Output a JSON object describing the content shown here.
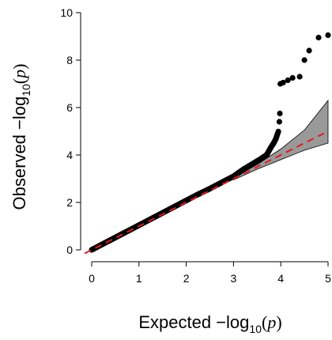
{
  "chart_data": {
    "type": "scatter",
    "title": "",
    "xlabel": {
      "prefix": "Expected  −log",
      "subscript": "10",
      "open_paren": "(",
      "variable": "p",
      "close_paren": ")"
    },
    "ylabel": {
      "prefix": "Observed  −log",
      "subscript": "10",
      "open_paren": "(",
      "variable": "p",
      "close_paren": ")"
    },
    "xlim": [
      0,
      5
    ],
    "ylim": [
      0,
      10
    ],
    "x_ticks": [
      0,
      1,
      2,
      3,
      4,
      5
    ],
    "y_ticks": [
      0,
      2,
      4,
      6,
      8,
      10
    ],
    "x_tick_labels": [
      "0",
      "1",
      "2",
      "3",
      "4",
      "5"
    ],
    "y_tick_labels": [
      "0",
      "2",
      "4",
      "6",
      "8",
      "10"
    ],
    "grid": false,
    "legend": "none",
    "series": [
      {
        "kind": "points",
        "color": "#000000",
        "description_points": [
          [
            0.0,
            0.0
          ],
          [
            0.25,
            0.26
          ],
          [
            0.5,
            0.52
          ],
          [
            0.75,
            0.78
          ],
          [
            1.0,
            1.04
          ],
          [
            1.25,
            1.3
          ],
          [
            1.5,
            1.56
          ],
          [
            1.75,
            1.82
          ],
          [
            2.0,
            2.08
          ],
          [
            2.25,
            2.34
          ],
          [
            2.5,
            2.58
          ],
          [
            2.75,
            2.84
          ],
          [
            3.0,
            3.1
          ],
          [
            3.2,
            3.38
          ],
          [
            3.4,
            3.62
          ],
          [
            3.55,
            3.8
          ],
          [
            3.7,
            4.0
          ],
          [
            3.8,
            4.35
          ],
          [
            3.85,
            4.5
          ],
          [
            3.9,
            4.7
          ],
          [
            3.95,
            5.0
          ],
          [
            3.97,
            5.4
          ],
          [
            3.98,
            5.75
          ],
          [
            3.99,
            7.0
          ],
          [
            4.05,
            7.05
          ],
          [
            4.15,
            7.15
          ],
          [
            4.25,
            7.25
          ],
          [
            4.4,
            7.3
          ],
          [
            4.5,
            8.0
          ],
          [
            4.6,
            8.4
          ],
          [
            4.8,
            8.95
          ],
          [
            5.0,
            9.05
          ]
        ]
      }
    ],
    "reference_line": {
      "from": [
        -0.15,
        -0.15
      ],
      "to": [
        5.0,
        5.0
      ],
      "color": "#e31a1c",
      "style": "dashed"
    },
    "confidence_band": {
      "color": "#999999",
      "x": [
        3.0,
        3.5,
        4.0,
        4.5,
        5.0
      ],
      "upper": [
        3.05,
        3.6,
        4.25,
        5.05,
        6.3
      ],
      "lower": [
        2.95,
        3.4,
        3.8,
        4.2,
        4.5
      ]
    }
  }
}
